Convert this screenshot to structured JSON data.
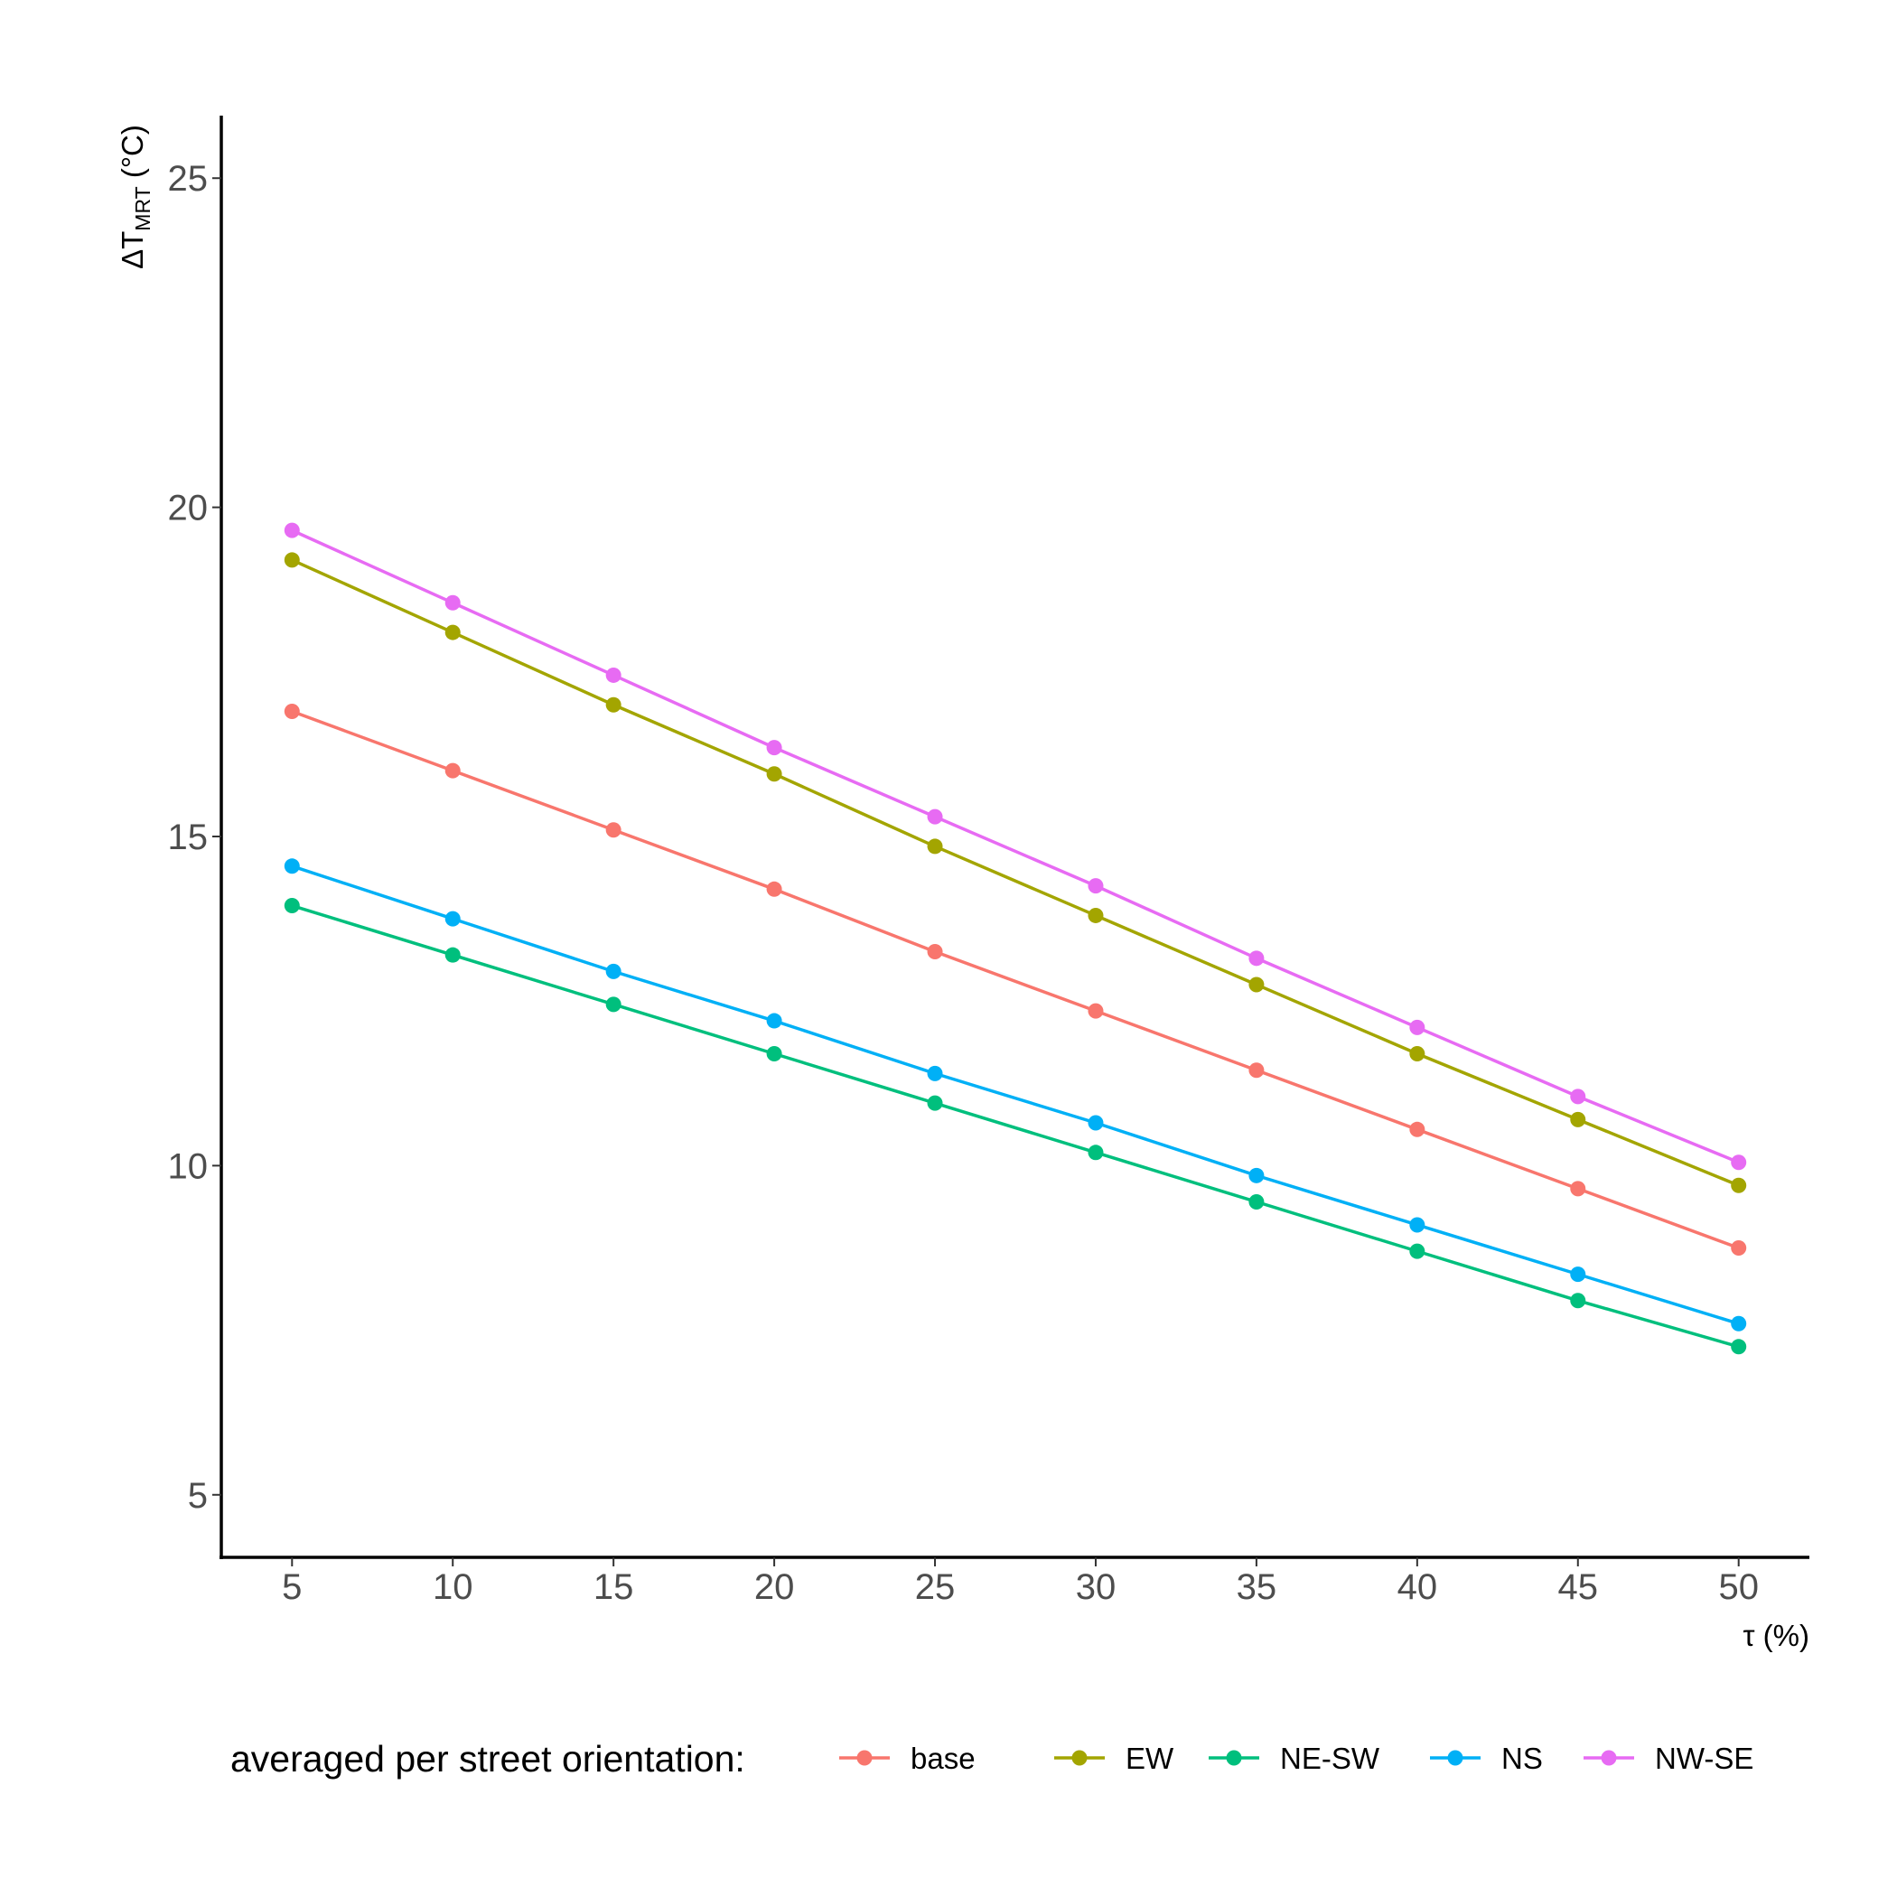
{
  "chart_data": {
    "type": "line",
    "x": [
      5,
      10,
      15,
      20,
      25,
      30,
      35,
      40,
      45,
      50
    ],
    "series": [
      {
        "name": "base",
        "color": "#F8766D",
        "values": [
          16.9,
          16.0,
          15.1,
          14.2,
          13.25,
          12.35,
          11.45,
          10.55,
          9.65,
          8.75
        ]
      },
      {
        "name": "EW",
        "color": "#A3A500",
        "values": [
          19.2,
          18.1,
          17.0,
          15.95,
          14.85,
          13.8,
          12.75,
          11.7,
          10.7,
          9.7
        ]
      },
      {
        "name": "NE-SW",
        "color": "#00BF7D",
        "values": [
          13.95,
          13.2,
          12.45,
          11.7,
          10.95,
          10.2,
          9.45,
          8.7,
          7.95,
          7.25
        ]
      },
      {
        "name": "NS",
        "color": "#00B0F6",
        "values": [
          14.55,
          13.75,
          12.95,
          12.2,
          11.4,
          10.65,
          9.85,
          9.1,
          8.35,
          7.6
        ]
      },
      {
        "name": "NW-SE",
        "color": "#E76BF3",
        "values": [
          19.65,
          18.55,
          17.45,
          16.35,
          15.3,
          14.25,
          13.15,
          12.1,
          11.05,
          10.05
        ]
      }
    ],
    "xlabel": "τ (%)",
    "ylabel_main": "ΔT",
    "ylabel_sub": "MRT",
    "ylabel_unit": " (°C)",
    "xlim": [
      2.8,
      52.2
    ],
    "ylim": [
      4.05,
      25.95
    ],
    "xticks": [
      "5",
      "10",
      "15",
      "20",
      "25",
      "30",
      "35",
      "40",
      "45",
      "50"
    ],
    "yticks": [
      "5",
      "10",
      "15",
      "20",
      "25"
    ],
    "grid": false,
    "legend_title": "averaged per street orientation:",
    "legend_position": "bottom"
  }
}
